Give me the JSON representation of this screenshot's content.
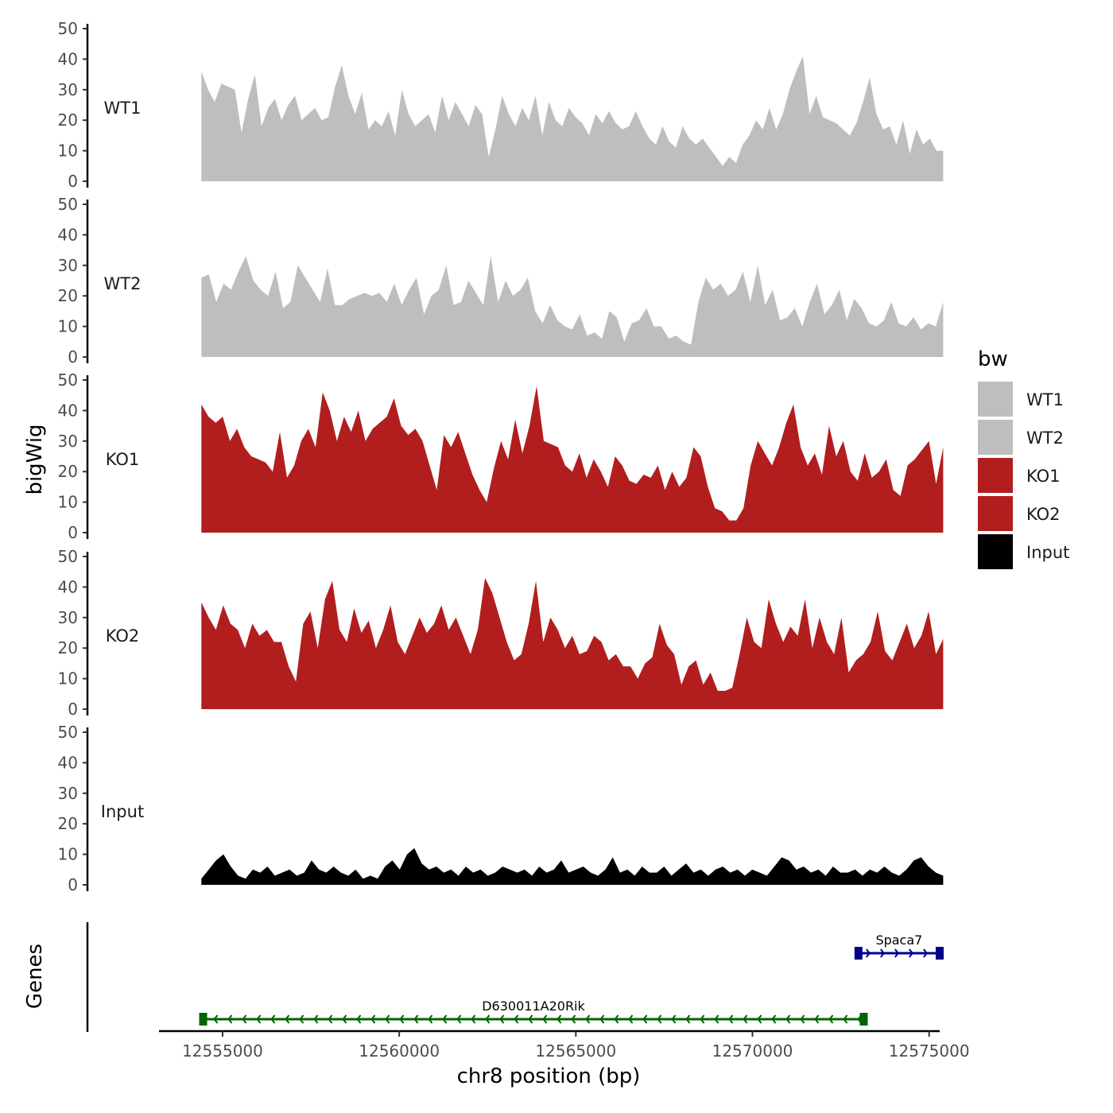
{
  "chart_data": {
    "type": "area",
    "title": "",
    "xlabel": "chr8 position (bp)",
    "ylabel": "bigWig",
    "genes_label": "Genes",
    "xlim": [
      12553200,
      12575300
    ],
    "x_ticks": [
      {
        "value": 12555000,
        "label": "12555000"
      },
      {
        "value": 12560000,
        "label": "12560000"
      },
      {
        "value": 12565000,
        "label": "12565000"
      },
      {
        "value": 12570000,
        "label": "12570000"
      },
      {
        "value": 12575000,
        "label": "12575000"
      }
    ],
    "ylim": [
      0,
      50
    ],
    "y_ticks": [
      {
        "value": 0,
        "label": "0"
      },
      {
        "value": 10,
        "label": "10"
      },
      {
        "value": 20,
        "label": "20"
      },
      {
        "value": 30,
        "label": "30"
      },
      {
        "value": 40,
        "label": "40"
      },
      {
        "value": 50,
        "label": "50"
      }
    ],
    "region": [
      12554400,
      12575400
    ],
    "legend": {
      "title": "bw",
      "entries": [
        {
          "label": "WT1",
          "color": "#bebebe"
        },
        {
          "label": "WT2",
          "color": "#bebebe"
        },
        {
          "label": "KO1",
          "color": "#b21e1e"
        },
        {
          "label": "KO2",
          "color": "#b21e1e"
        },
        {
          "label": "Input",
          "color": "#000000"
        }
      ]
    },
    "series": [
      {
        "name": "WT1",
        "color": "#bebebe",
        "values": [
          36,
          30,
          26,
          32,
          31,
          30,
          16,
          27,
          35,
          18,
          24,
          27,
          20,
          25,
          28,
          20,
          22,
          24,
          20,
          21,
          31,
          38,
          28,
          22,
          29,
          17,
          20,
          18,
          23,
          15,
          30,
          22,
          18,
          20,
          22,
          16,
          28,
          20,
          26,
          22,
          18,
          25,
          22,
          8,
          17,
          28,
          22,
          18,
          24,
          20,
          28,
          15,
          26,
          20,
          18,
          24,
          21,
          19,
          15,
          22,
          19,
          23,
          19,
          17,
          18,
          23,
          18,
          14,
          12,
          18,
          13,
          11,
          18,
          14,
          12,
          14,
          11,
          8,
          5,
          8,
          6,
          12,
          15,
          20,
          17,
          24,
          17,
          22,
          30,
          36,
          41,
          22,
          28,
          21,
          20,
          19,
          17,
          15,
          19,
          26,
          34,
          22,
          17,
          18,
          12,
          20,
          9,
          17,
          12,
          14,
          10,
          10
        ]
      },
      {
        "name": "WT2",
        "color": "#bebebe",
        "values": [
          26,
          27,
          18,
          24,
          22,
          28,
          33,
          25,
          22,
          20,
          28,
          16,
          18,
          30,
          26,
          22,
          18,
          29,
          17,
          17,
          19,
          20,
          21,
          20,
          21,
          18,
          24,
          17,
          22,
          26,
          14,
          20,
          22,
          30,
          17,
          18,
          25,
          21,
          17,
          33,
          18,
          25,
          20,
          22,
          26,
          15,
          11,
          17,
          12,
          10,
          9,
          14,
          7,
          8,
          6,
          15,
          13,
          5,
          11,
          12,
          16,
          10,
          10,
          6,
          7,
          5,
          4,
          18,
          26,
          22,
          24,
          20,
          22,
          28,
          18,
          30,
          17,
          22,
          12,
          13,
          16,
          10,
          18,
          24,
          14,
          17,
          22,
          12,
          19,
          16,
          11,
          10,
          12,
          18,
          11,
          10,
          13,
          9,
          11,
          10,
          18
        ]
      },
      {
        "name": "KO1",
        "color": "#b21e1e",
        "values": [
          42,
          38,
          36,
          38,
          30,
          34,
          28,
          25,
          24,
          23,
          20,
          33,
          18,
          22,
          30,
          34,
          28,
          46,
          40,
          30,
          38,
          33,
          40,
          30,
          34,
          36,
          38,
          44,
          35,
          32,
          34,
          30,
          22,
          14,
          32,
          28,
          33,
          26,
          19,
          14,
          10,
          21,
          30,
          24,
          37,
          26,
          35,
          48,
          30,
          29,
          28,
          22,
          20,
          26,
          18,
          24,
          20,
          15,
          25,
          22,
          17,
          16,
          19,
          18,
          22,
          14,
          20,
          15,
          18,
          28,
          25,
          15,
          8,
          7,
          4,
          4,
          8,
          22,
          30,
          26,
          22,
          28,
          36,
          42,
          28,
          22,
          26,
          19,
          35,
          25,
          30,
          20,
          17,
          26,
          18,
          20,
          24,
          14,
          12,
          22,
          24,
          27,
          30,
          16,
          28
        ]
      },
      {
        "name": "KO2",
        "color": "#b21e1e",
        "values": [
          35,
          30,
          26,
          34,
          28,
          26,
          20,
          28,
          24,
          26,
          22,
          22,
          14,
          9,
          28,
          32,
          20,
          36,
          42,
          26,
          22,
          33,
          25,
          29,
          20,
          26,
          34,
          22,
          18,
          24,
          30,
          25,
          28,
          34,
          26,
          30,
          24,
          18,
          26,
          43,
          38,
          30,
          22,
          16,
          18,
          28,
          42,
          22,
          30,
          26,
          20,
          24,
          18,
          19,
          24,
          22,
          16,
          18,
          14,
          14,
          10,
          15,
          17,
          28,
          21,
          18,
          8,
          14,
          16,
          8,
          12,
          6,
          6,
          7,
          18,
          30,
          22,
          20,
          36,
          28,
          22,
          27,
          24,
          36,
          20,
          30,
          22,
          18,
          30,
          12,
          16,
          18,
          22,
          32,
          19,
          16,
          22,
          28,
          20,
          24,
          32,
          18,
          23
        ]
      },
      {
        "name": "Input",
        "color": "#000000",
        "values": [
          2,
          5,
          8,
          10,
          6,
          3,
          2,
          5,
          4,
          6,
          3,
          4,
          5,
          3,
          4,
          8,
          5,
          4,
          6,
          4,
          3,
          5,
          2,
          3,
          2,
          6,
          8,
          5,
          10,
          12,
          7,
          5,
          6,
          4,
          5,
          3,
          6,
          4,
          5,
          3,
          4,
          6,
          5,
          4,
          5,
          3,
          6,
          4,
          5,
          8,
          4,
          5,
          6,
          4,
          3,
          5,
          9,
          4,
          5,
          3,
          6,
          4,
          4,
          6,
          3,
          5,
          7,
          4,
          5,
          3,
          5,
          6,
          4,
          5,
          3,
          5,
          4,
          3,
          6,
          9,
          8,
          5,
          6,
          4,
          5,
          3,
          6,
          4,
          4,
          5,
          3,
          5,
          4,
          6,
          4,
          3,
          5,
          8,
          9,
          6,
          4,
          3
        ]
      }
    ],
    "genes": [
      {
        "name": "D630011A20Rik",
        "start": 12554450,
        "end": 12573150,
        "strand": "-",
        "color": "#006400"
      },
      {
        "name": "Spaca7",
        "start": 12573000,
        "end": 12575300,
        "strand": "+",
        "color": "#00008b"
      }
    ]
  }
}
